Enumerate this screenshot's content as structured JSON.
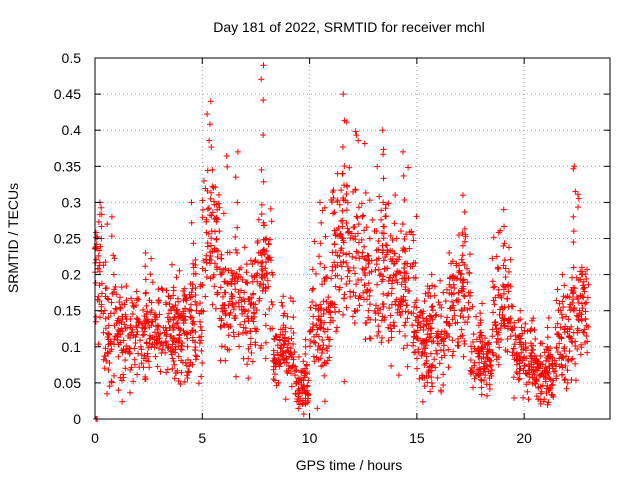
{
  "chart_data": {
    "type": "scatter",
    "title": "Day 181 of 2022, SRMTID for receiver mchl",
    "xlabel": "GPS time / hours",
    "ylabel": "SRMTID / TECUs",
    "xlim": [
      0,
      24
    ],
    "ylim": [
      0,
      0.5
    ],
    "xticks": [
      0,
      5,
      10,
      15,
      20
    ],
    "xtick_labels": [
      "0",
      "5",
      "10",
      "15",
      "20"
    ],
    "yticks": [
      0,
      0.05,
      0.1,
      0.15,
      0.2,
      0.25,
      0.3,
      0.35,
      0.4,
      0.45,
      0.5
    ],
    "ytick_labels": [
      "0",
      "0.05",
      "0.1",
      "0.15",
      "0.2",
      "0.25",
      "0.3",
      "0.35",
      "0.4",
      "0.45",
      "0.5"
    ],
    "grid": true,
    "marker": "+",
    "color": "#ff0000",
    "series_profile": [
      {
        "x_from": 0.0,
        "x_to": 0.4,
        "center": 0.2,
        "spread": 0.06,
        "peak": 0.3
      },
      {
        "x_from": 0.4,
        "x_to": 1.5,
        "center": 0.12,
        "spread": 0.05,
        "peak": 0.28
      },
      {
        "x_from": 1.5,
        "x_to": 4.2,
        "center": 0.12,
        "spread": 0.04,
        "peak": 0.23
      },
      {
        "x_from": 4.2,
        "x_to": 5.0,
        "center": 0.13,
        "spread": 0.05,
        "peak": 0.3
      },
      {
        "x_from": 5.0,
        "x_to": 5.8,
        "center": 0.25,
        "spread": 0.06,
        "peak": 0.44
      },
      {
        "x_from": 5.8,
        "x_to": 7.5,
        "center": 0.16,
        "spread": 0.05,
        "peak": 0.37
      },
      {
        "x_from": 7.5,
        "x_to": 8.3,
        "center": 0.2,
        "spread": 0.06,
        "peak": 0.49
      },
      {
        "x_from": 8.3,
        "x_to": 9.3,
        "center": 0.09,
        "spread": 0.03,
        "peak": 0.17
      },
      {
        "x_from": 9.3,
        "x_to": 10.0,
        "center": 0.05,
        "spread": 0.02,
        "peak": 0.11
      },
      {
        "x_from": 10.0,
        "x_to": 11.0,
        "center": 0.13,
        "spread": 0.05,
        "peak": 0.3
      },
      {
        "x_from": 11.0,
        "x_to": 12.5,
        "center": 0.23,
        "spread": 0.07,
        "peak": 0.45
      },
      {
        "x_from": 12.5,
        "x_to": 14.0,
        "center": 0.2,
        "spread": 0.06,
        "peak": 0.4
      },
      {
        "x_from": 14.0,
        "x_to": 15.0,
        "center": 0.17,
        "spread": 0.06,
        "peak": 0.37
      },
      {
        "x_from": 15.0,
        "x_to": 16.5,
        "center": 0.11,
        "spread": 0.04,
        "peak": 0.2
      },
      {
        "x_from": 16.5,
        "x_to": 17.5,
        "center": 0.17,
        "spread": 0.05,
        "peak": 0.31
      },
      {
        "x_from": 17.5,
        "x_to": 18.5,
        "center": 0.08,
        "spread": 0.03,
        "peak": 0.16
      },
      {
        "x_from": 18.5,
        "x_to": 19.5,
        "center": 0.15,
        "spread": 0.05,
        "peak": 0.29
      },
      {
        "x_from": 19.5,
        "x_to": 20.5,
        "center": 0.08,
        "spread": 0.03,
        "peak": 0.15
      },
      {
        "x_from": 20.5,
        "x_to": 21.5,
        "center": 0.06,
        "spread": 0.025,
        "peak": 0.14
      },
      {
        "x_from": 21.5,
        "x_to": 22.2,
        "center": 0.11,
        "spread": 0.04,
        "peak": 0.2
      },
      {
        "x_from": 22.2,
        "x_to": 22.6,
        "center": 0.14,
        "spread": 0.05,
        "peak": 0.35
      },
      {
        "x_from": 22.6,
        "x_to": 23.0,
        "center": 0.15,
        "spread": 0.04,
        "peak": 0.21
      }
    ]
  }
}
